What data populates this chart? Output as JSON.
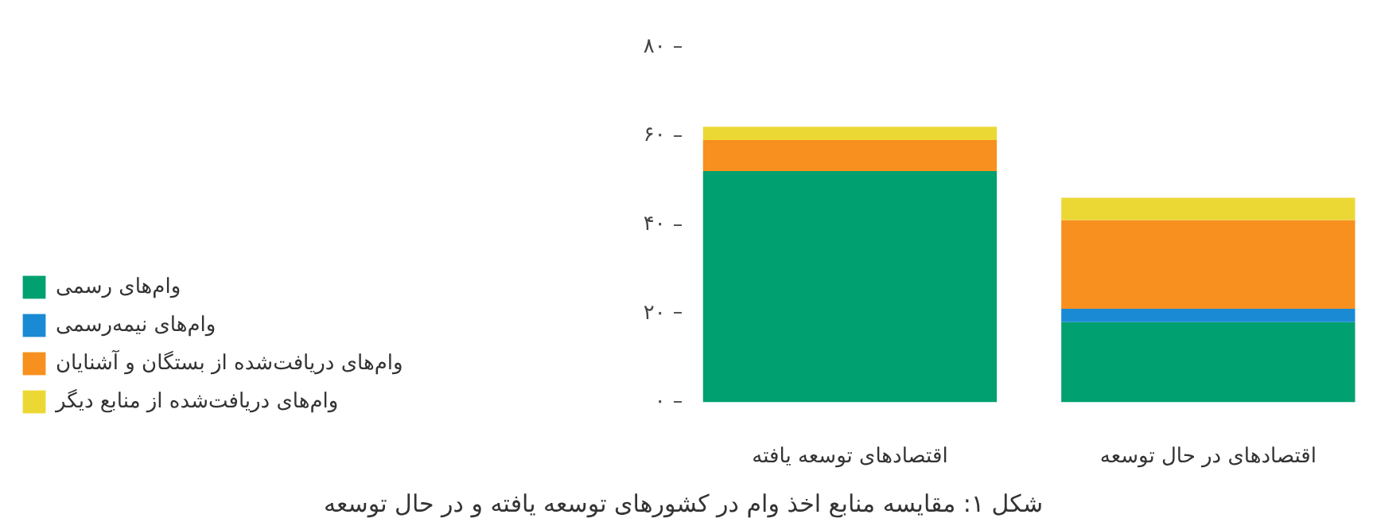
{
  "chart_data": {
    "type": "bar",
    "stacked": true,
    "title": "شکل ۱: مقایسه منابع اخذ وام در کشورهای توسعه یافته و در حال توسعه",
    "categories": [
      "اقتصادهای توسعه یافته",
      "اقتصادهای در حال توسعه"
    ],
    "series": [
      {
        "name": "وام‌های رسمی",
        "color": "#00a070",
        "values": [
          52,
          18
        ]
      },
      {
        "name": "وام‌های نیمه‌رسمی",
        "color": "#1a8ad4",
        "values": [
          0,
          3
        ]
      },
      {
        "name": "وام‌های دریافت‌شده از بستگان و آشنایان",
        "color": "#f7901e",
        "values": [
          7,
          20
        ]
      },
      {
        "name": "وام‌های دریافت‌شده از منابع دیگر",
        "color": "#ecd834",
        "values": [
          3,
          5
        ]
      }
    ],
    "ylim": [
      0,
      80
    ],
    "yticks": [
      {
        "value": 0,
        "label": "۰"
      },
      {
        "value": 20,
        "label": "۲۰"
      },
      {
        "value": 40,
        "label": "۴۰"
      },
      {
        "value": 60,
        "label": "۶۰"
      },
      {
        "value": 80,
        "label": "۸۰"
      }
    ],
    "grid": false,
    "legend": "left"
  }
}
